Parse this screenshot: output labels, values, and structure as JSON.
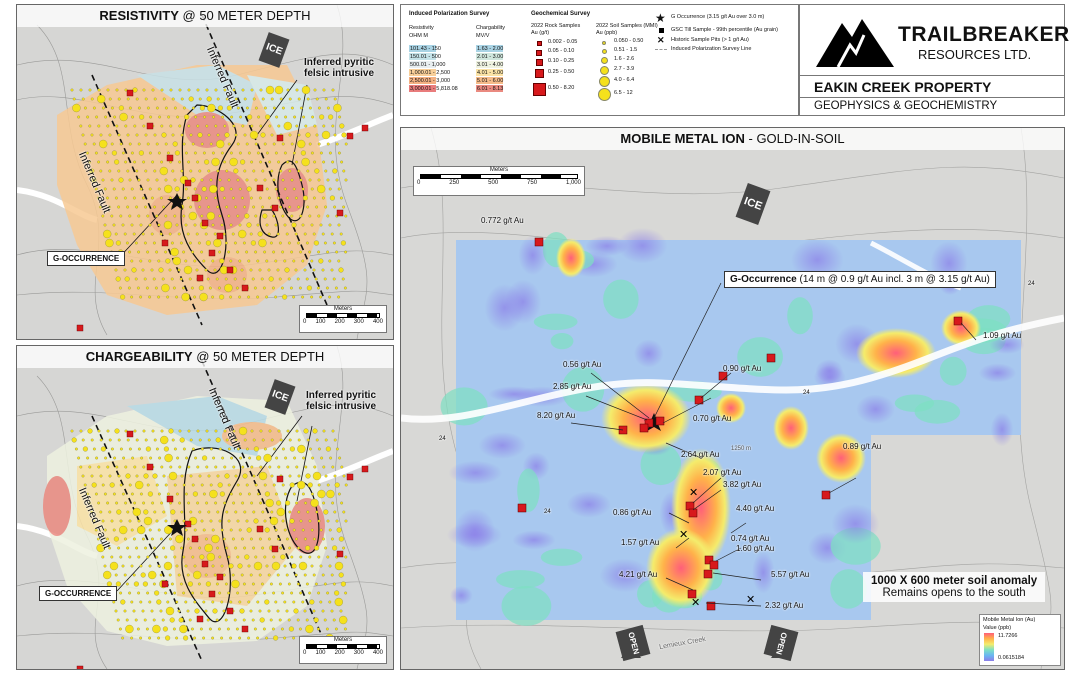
{
  "colors": {
    "rock_red": "#d7191c",
    "soil_yellow": "#f5e11c",
    "map_grey": "#d9d9d7",
    "border": "#666666"
  },
  "legend": {
    "ip_title": "Induced Polarization Survey",
    "resistivity_head": "Resistivity",
    "resistivity_unit": "OHM M",
    "resistivity": [
      {
        "label": "101.43 - 150",
        "color": "#a9d3e4"
      },
      {
        "label": "150.01 - 500",
        "color": "#c5e3e9"
      },
      {
        "label": "500.01 - 1,000",
        "color": "#e8eef0"
      },
      {
        "label": "1,000.01 - 2,500",
        "color": "#f8cf99"
      },
      {
        "label": "2,500.01 - 3,000",
        "color": "#f4b183"
      },
      {
        "label": "3,000.01 - 5,818.08",
        "color": "#e97c7c"
      }
    ],
    "chargeability_head": "Chargability",
    "chargeability_unit": "MV/V",
    "chargeability": [
      {
        "label": "1.63 - 2.00",
        "color": "#a9d3e4"
      },
      {
        "label": "2.01 - 3.00",
        "color": "#cfe6dd"
      },
      {
        "label": "3.01 - 4.00",
        "color": "#eef2e0"
      },
      {
        "label": "4.01 - 5.00",
        "color": "#fbe3a6"
      },
      {
        "label": "5.01 - 6.00",
        "color": "#f5bb8a"
      },
      {
        "label": "6.01 - 8.13",
        "color": "#ea8a80"
      }
    ],
    "geochem_title": "Geochemical Survey",
    "rock_head": "2022 Rock Samples",
    "rock_unit": "Au (g/t)",
    "rock": [
      "0.002 - 0.05",
      "0.05 - 0.10",
      "0.10 - 0.25",
      "0.25 - 0.50",
      "0.50 - 8.20"
    ],
    "soil_head": "2022 Soil Samples (MMI)",
    "soil_unit": "Au (ppb)",
    "soil": [
      "0.050 - 0.50",
      "0.51 - 1.5",
      "1.6 - 2.6",
      "2.7 - 3.9",
      "4.0 - 6.4",
      "6.5 - 12"
    ],
    "symbols": [
      "G Occurrence (3.15 g/t Au over 3.0 m)",
      "GSC Till Sample - 99th percentile (Au grain)",
      "Historic Sample Pits (> 1 g/t Au)",
      "Induced Polarization Survey Line"
    ]
  },
  "logo": {
    "name_line1": "TRAILBREAKER",
    "name_line2": "RESOURCES LTD.",
    "property": "EAKIN CREEK PROPERTY",
    "subtitle": "GEOPHYSICS & GEOCHEMISTRY"
  },
  "resistivity_panel": {
    "title_bold": "RESISTIVITY",
    "title_rest": "@ 50 METER DEPTH",
    "ice": "ICE",
    "fault_left": "Inferred Fault",
    "fault_right": "Inferred Fault",
    "intrusive": "Inferred pyritic felsic intrusive",
    "g_occurrence": "G-OCCURRENCE",
    "scale_title": "Meters",
    "scale_ticks": [
      "0",
      "100",
      "200",
      "300",
      "400"
    ]
  },
  "chargeability_panel": {
    "title_bold": "CHARGEABILITY",
    "title_rest": "@ 50 METER DEPTH",
    "ice": "ICE",
    "fault_left": "Inferred Fault",
    "fault_right": "Inferred Fault",
    "intrusive": "Inferred pyritic felsic intrusive",
    "g_occurrence": "G-OCCURRENCE",
    "scale_title": "Meters",
    "scale_ticks": [
      "0",
      "100",
      "200",
      "300",
      "400"
    ]
  },
  "mmi_panel": {
    "title_bold": "MOBILE METAL ION",
    "title_rest": "- GOLD-IN-SOIL",
    "ice": "ICE",
    "scale_title": "Meters",
    "scale_ticks": [
      "0",
      "250",
      "500",
      "750",
      "1,000"
    ],
    "g_title": "G-Occurrence",
    "g_detail": "(14 m @ 0.9 g/t Au incl. 3 m @ 3.15 g/t Au)",
    "road_labels": [
      "24",
      "24",
      "24",
      "24"
    ],
    "contour_label": "1250 m",
    "creek": "Lemieux Creek",
    "sample_labels": [
      "0.772 g/t Au",
      "1.09 g/t Au",
      "0.56 g/t Au",
      "0.90 g/t Au",
      "2.85 g/t Au",
      "8.20 g/t Au",
      "0.70 g/t Au",
      "2.64 g/t Au",
      "0.89 g/t Au",
      "2.07 g/t Au",
      "3.82 g/t Au",
      "0.86 g/t Au",
      "4.40 g/t Au",
      "1.57 g/t Au",
      "0.74 g/t Au",
      "1.60 g/t Au",
      "4.21 g/t Au",
      "5.57 g/t Au",
      "2.32 g/t Au"
    ],
    "anomaly_line1": "1000 X 600 meter soil anomaly",
    "anomaly_line2": "Remains opens to the south",
    "open_left": "OPEN",
    "open_right": "OPEN",
    "mmi_legend_title": "Mobile Metal Ion (Au)",
    "mmi_legend_unit": "Value (ppb)",
    "mmi_legend_max": "11.7266",
    "mmi_legend_min": "0.0615184"
  }
}
